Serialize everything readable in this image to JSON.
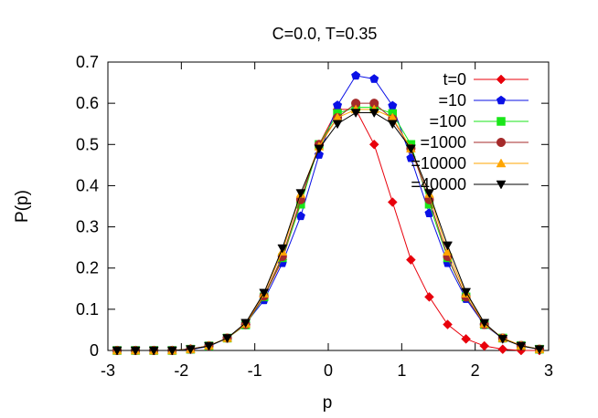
{
  "chart_data": {
    "type": "line",
    "title": "C=0.0, T=0.35",
    "xlabel": "p",
    "ylabel": "P(p)",
    "xlim": [
      -3,
      3
    ],
    "ylim": [
      0,
      0.7
    ],
    "xticks": [
      -3,
      -2,
      -1,
      0,
      1,
      2,
      3
    ],
    "yticks": [
      0,
      0.1,
      0.2,
      0.3,
      0.4,
      0.5,
      0.6,
      0.7
    ],
    "xtick_labels": [
      "-3",
      "-2",
      "-1",
      "0",
      "1",
      "2",
      "3"
    ],
    "ytick_labels": [
      "0",
      "0.1",
      "0.2",
      "0.3",
      "0.4",
      "0.5",
      "0.6",
      "0.7"
    ],
    "grid": false,
    "legend_position": "top-right",
    "x": [
      -2.875,
      -2.625,
      -2.375,
      -2.125,
      -1.875,
      -1.625,
      -1.375,
      -1.125,
      -0.875,
      -0.625,
      -0.375,
      -0.125,
      0.125,
      0.375,
      0.625,
      0.875,
      1.125,
      1.375,
      1.625,
      1.875,
      2.125,
      2.375,
      2.625,
      2.875
    ],
    "series": [
      {
        "name": "t=0",
        "color": "#e8000b",
        "marker": "diamond",
        "values": [
          0,
          0,
          0,
          0,
          0.004,
          0.011,
          0.03,
          0.063,
          0.13,
          0.22,
          0.36,
          0.5,
          0.585,
          0.585,
          0.5,
          0.36,
          0.22,
          0.13,
          0.063,
          0.028,
          0.011,
          0.003,
          0,
          0
        ]
      },
      {
        "name": "=10",
        "color": "#0a10e6",
        "marker": "pentagon",
        "values": [
          0,
          0,
          0,
          0,
          0.002,
          0.01,
          0.03,
          0.065,
          0.122,
          0.212,
          0.326,
          0.475,
          0.595,
          0.667,
          0.659,
          0.594,
          0.467,
          0.333,
          0.212,
          0.125,
          0.062,
          0.029,
          0.011,
          0.003
        ]
      },
      {
        "name": "=100",
        "color": "#19e619",
        "marker": "square",
        "values": [
          0,
          0,
          0,
          0,
          0.003,
          0.011,
          0.03,
          0.062,
          0.13,
          0.225,
          0.355,
          0.5,
          0.575,
          0.59,
          0.59,
          0.575,
          0.5,
          0.355,
          0.225,
          0.13,
          0.063,
          0.03,
          0.012,
          0.003
        ]
      },
      {
        "name": "=1000",
        "color": "#a52a2a",
        "marker": "circle",
        "values": [
          0,
          0,
          0,
          0,
          0.003,
          0.011,
          0.03,
          0.063,
          0.132,
          0.228,
          0.366,
          0.5,
          0.565,
          0.6,
          0.6,
          0.562,
          0.49,
          0.366,
          0.228,
          0.13,
          0.063,
          0.03,
          0.012,
          0.003
        ]
      },
      {
        "name": "=10000",
        "color": "#ffa500",
        "marker": "triangle-up",
        "values": [
          0,
          0,
          0,
          0,
          0.003,
          0.012,
          0.03,
          0.065,
          0.138,
          0.24,
          0.38,
          0.495,
          0.565,
          0.585,
          0.585,
          0.565,
          0.49,
          0.38,
          0.24,
          0.138,
          0.065,
          0.03,
          0.012,
          0.003
        ]
      },
      {
        "name": "=40000",
        "color": "#000000",
        "marker": "triangle-down",
        "values": [
          0,
          0,
          0,
          0,
          0.003,
          0.011,
          0.03,
          0.067,
          0.14,
          0.248,
          0.382,
          0.49,
          0.55,
          0.577,
          0.577,
          0.55,
          0.49,
          0.382,
          0.255,
          0.142,
          0.067,
          0.028,
          0.011,
          0.003
        ]
      }
    ]
  }
}
